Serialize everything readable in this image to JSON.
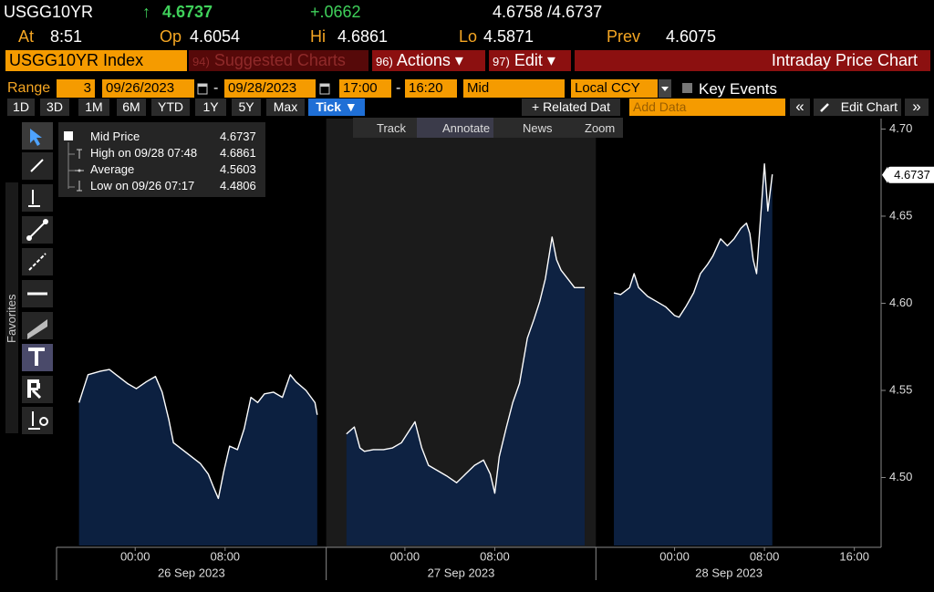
{
  "header": {
    "ticker": "USGG10YR",
    "arrow": "↑",
    "last": "4.6737",
    "change": "+.0662",
    "bid_ask": "4.6758 /4.6737",
    "fields": [
      {
        "label": "At",
        "value": "8:51"
      },
      {
        "label": "Op",
        "value": "4.6054"
      },
      {
        "label": "Hi",
        "value": "4.6861"
      },
      {
        "label": "Lo",
        "value": "4.5871"
      },
      {
        "label": "Prev",
        "value": "4.6075"
      }
    ]
  },
  "menu": {
    "security": "USGG10YR Index",
    "items": [
      {
        "num": "94)",
        "label": "Suggested Charts"
      },
      {
        "num": "96)",
        "label": "Actions ▾"
      },
      {
        "num": "97)",
        "label": "Edit ▾"
      }
    ],
    "title": "Intraday Price Chart"
  },
  "range": {
    "label": "Range",
    "days": "3",
    "start_date": "09/26/2023",
    "end_date": "09/28/2023",
    "sep": "-",
    "start_time": "17:00",
    "end_time": "16:20",
    "price": "Mid",
    "currency": "Local CCY",
    "events": "Key Events"
  },
  "periods": [
    "1D",
    "3D",
    "1M",
    "6M",
    "YTD",
    "1Y",
    "5Y",
    "Max",
    "Tick ▼"
  ],
  "actions": {
    "related": "+ Related Dat",
    "add_data": "Add Data",
    "collapse": "«",
    "edit_chart": "Edit Chart",
    "expand": "»"
  },
  "chart_tools": [
    "Track",
    "Annotate",
    "News",
    "Zoom"
  ],
  "side_label": "Favorites",
  "chart_data": {
    "type": "area",
    "x": [
      -5.0,
      -4.6,
      -4.2,
      -3.1,
      -2.3,
      -1.5,
      -0.7,
      0.1,
      1.0,
      1.8,
      2.4,
      3.0,
      3.4,
      4.2,
      5.0,
      5.8,
      6.5,
      7.0,
      7.4,
      7.9,
      8.4,
      9.1,
      9.7,
      10.3,
      10.9,
      11.5,
      12.3,
      13.1,
      13.8,
      14.3,
      15.2,
      16.0,
      16.2,
      17.5,
      18.8,
      19.5,
      20.0,
      20.4,
      21.2,
      22.1,
      22.9,
      23.7,
      24.5,
      24.9,
      25.5,
      26.1,
      26.9,
      27.7,
      28.6,
      29.4,
      30.2,
      31.0,
      31.6,
      32.0,
      32.4,
      33.0,
      33.6,
      34.2,
      34.9,
      35.5,
      36.0,
      36.5,
      37.1,
      37.5,
      37.9,
      38.5,
      39.1,
      40.0,
      41.3,
      42.6,
      43.2,
      44.0,
      44.4,
      44.8,
      45.6,
      46.4,
      47.2,
      48.0,
      48.4,
      49.0,
      49.7,
      50.3,
      50.9,
      51.4,
      52.1,
      52.7,
      53.3,
      53.9,
      54.4,
      54.7,
      55.0,
      55.3,
      55.7,
      56.0,
      56.3,
      56.7
    ],
    "series": [
      {
        "name": "Mid Price",
        "color": "#ffffff",
        "fill": "#0d2347",
        "values": [
          4.543,
          4.551,
          4.559,
          4.561,
          4.562,
          4.558,
          4.554,
          4.551,
          4.555,
          4.558,
          4.549,
          4.533,
          4.52,
          4.516,
          4.512,
          4.508,
          4.502,
          4.494,
          4.488,
          4.504,
          4.518,
          4.516,
          4.528,
          4.546,
          4.543,
          4.548,
          4.549,
          4.546,
          4.559,
          4.555,
          4.55,
          4.543,
          4.536,
          null,
          4.525,
          4.529,
          4.517,
          4.515,
          4.516,
          4.516,
          4.517,
          4.52,
          4.528,
          4.532,
          4.517,
          4.507,
          4.504,
          4.501,
          4.497,
          4.502,
          4.507,
          4.51,
          4.502,
          4.491,
          4.512,
          4.528,
          4.543,
          4.554,
          4.58,
          4.591,
          4.601,
          4.614,
          4.638,
          4.625,
          4.619,
          4.614,
          4.609,
          4.609,
          null,
          4.606,
          4.605,
          4.609,
          4.617,
          4.609,
          4.604,
          4.601,
          4.598,
          4.593,
          4.592,
          4.598,
          4.606,
          4.617,
          4.622,
          4.627,
          4.637,
          4.633,
          4.637,
          4.643,
          4.646,
          4.64,
          4.625,
          4.617,
          4.653,
          4.68,
          4.653,
          4.674
        ]
      }
    ],
    "xlim": [
      -7,
      66.3
    ],
    "ylim": [
      4.461,
      4.706
    ],
    "xticks": [
      {
        "value": 0,
        "label": "00:00"
      },
      {
        "value": 8,
        "label": "08:00"
      },
      {
        "value": 24,
        "label": "00:00"
      },
      {
        "value": 32,
        "label": "08:00"
      },
      {
        "value": 48,
        "label": "00:00"
      },
      {
        "value": 56,
        "label": "08:00"
      },
      {
        "value": 64,
        "label": "16:00"
      }
    ],
    "yticks": [
      {
        "value": 4.5,
        "label": "4.50"
      },
      4.55,
      {
        "value": 4.6,
        "label": "4.60"
      },
      4.65,
      {
        "value": 4.7,
        "label": "4.70"
      }
    ],
    "session_breaks": [
      17,
      41
    ],
    "dates": [
      "26 Sep 2023",
      "27 Sep 2023",
      "28 Sep 2023"
    ],
    "last_price": 4.6737,
    "stats": [
      {
        "label": "High on 09/28 07:48",
        "value": 4.6861
      },
      {
        "label": "Average",
        "value": 4.5603
      },
      {
        "label": "Low on 09/26 07:17",
        "value": 4.4806
      }
    ],
    "grid": false
  }
}
